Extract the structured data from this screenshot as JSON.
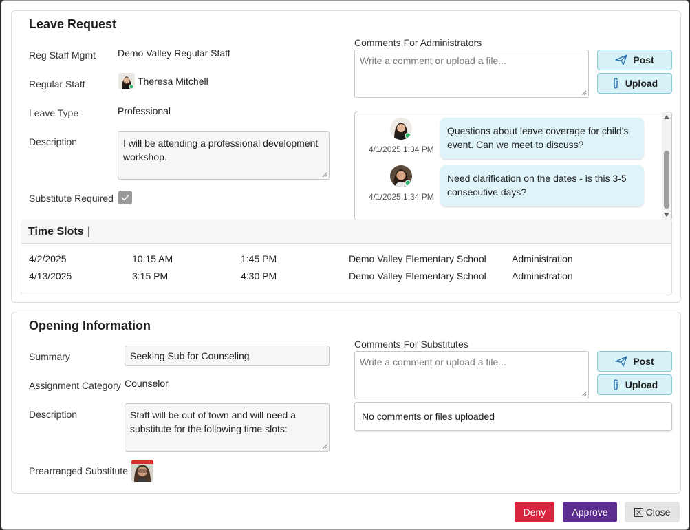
{
  "leave": {
    "title": "Leave Request",
    "labels": {
      "reg_staff_mgmt": "Reg Staff Mgmt",
      "regular_staff": "Regular Staff",
      "leave_type": "Leave Type",
      "description": "Description",
      "substitute_required": "Substitute Required"
    },
    "reg_staff_mgmt": "Demo Valley Regular Staff",
    "regular_staff": "Theresa Mitchell",
    "leave_type": "Professional",
    "description": "I will be attending a professional development workshop.",
    "substitute_required": true,
    "comments_label": "Comments For Administrators",
    "comment_placeholder": "Write a comment or upload a file...",
    "post_label": "Post",
    "upload_label": "Upload",
    "comments": [
      {
        "text": "Questions about leave coverage for child's event. Can we meet to discuss?",
        "timestamp": "4/1/2025 1:34 PM"
      },
      {
        "text": "Need clarification on the dates - is this 3-5 consecutive days?",
        "timestamp": "4/1/2025 1:34 PM"
      }
    ],
    "time_slots_title": "Time Slots",
    "time_slots": [
      {
        "date": "4/2/2025",
        "start": "10:15 AM",
        "end": "1:45 PM",
        "location": "Demo Valley Elementary School",
        "position": "Administration"
      },
      {
        "date": "4/13/2025",
        "start": "3:15 PM",
        "end": "4:30 PM",
        "location": "Demo Valley Elementary School",
        "position": "Administration"
      }
    ]
  },
  "opening": {
    "title": "Opening Information",
    "labels": {
      "summary": "Summary",
      "assignment_category": "Assignment Category",
      "description": "Description",
      "prearranged_substitute": "Prearranged Substitute"
    },
    "summary": "Seeking Sub for Counseling",
    "assignment_category": "Counselor",
    "description": "Staff will be out of town and will need a substitute for the following time slots:",
    "comments_label": "Comments For Substitutes",
    "comment_placeholder": "Write a comment or upload a file...",
    "post_label": "Post",
    "upload_label": "Upload",
    "no_comments": "No comments or files uploaded"
  },
  "footer": {
    "deny": "Deny",
    "approve": "Approve",
    "close": "Close"
  },
  "colors": {
    "deny": "#d9253f",
    "approve": "#5c2d8f",
    "post_bg": "#d8f3f8",
    "bubble_bg": "#dff4f8"
  }
}
